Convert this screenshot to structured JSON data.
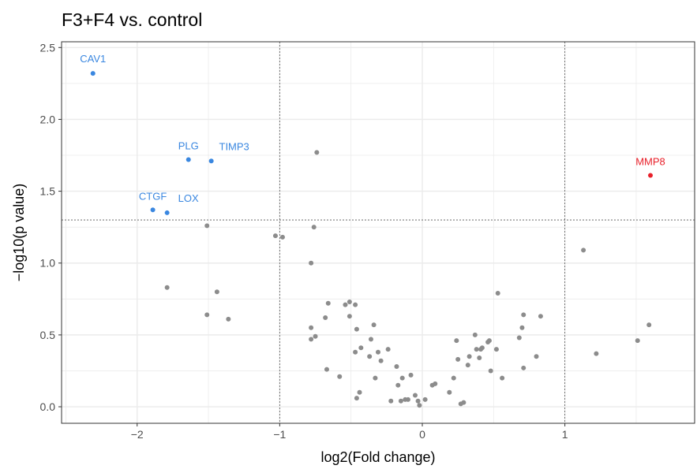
{
  "chart_data": {
    "type": "scatter",
    "title": "F3+F4 vs. control",
    "xlabel": "log2(Fold change)",
    "ylabel": "−log10(p value)",
    "xlim": [
      -2.53,
      1.91
    ],
    "ylim": [
      -0.115,
      2.54
    ],
    "x_ticks": [
      -2,
      -1,
      0,
      1
    ],
    "x_tick_labels": [
      "−2",
      "−1",
      "0",
      "1"
    ],
    "y_ticks": [
      0.0,
      0.5,
      1.0,
      1.5,
      2.0,
      2.5
    ],
    "y_tick_labels": [
      "0.0",
      "0.5",
      "1.0",
      "1.5",
      "2.0",
      "2.5"
    ],
    "grid": true,
    "vlines": [
      -1,
      1
    ],
    "hline": 1.3,
    "colors": {
      "down": "#3a87e0",
      "up": "#e8202a",
      "ns": "#8c8c8c",
      "grid": "#ebebeb",
      "panel_border": "#333333",
      "ref_line": "#555555"
    },
    "labeled_points": [
      {
        "label": "CAV1",
        "x": -2.31,
        "y": 2.32,
        "group": "down"
      },
      {
        "label": "PLG",
        "x": -1.64,
        "y": 1.72,
        "group": "down"
      },
      {
        "label": "TIMP3",
        "x": -1.48,
        "y": 1.71,
        "group": "down"
      },
      {
        "label": "CTGF",
        "x": -1.89,
        "y": 1.37,
        "group": "down"
      },
      {
        "label": "LOX",
        "x": -1.79,
        "y": 1.35,
        "group": "down"
      },
      {
        "label": "MMP8",
        "x": 1.6,
        "y": 1.61,
        "group": "up"
      }
    ],
    "points": [
      [
        -0.74,
        1.77
      ],
      [
        -1.51,
        1.26
      ],
      [
        -0.76,
        1.25
      ],
      [
        -1.03,
        1.19
      ],
      [
        -0.98,
        1.18
      ],
      [
        -0.78,
        1.0
      ],
      [
        -1.79,
        0.83
      ],
      [
        -1.44,
        0.8
      ],
      [
        -1.51,
        0.64
      ],
      [
        -1.36,
        0.61
      ],
      [
        -0.78,
        0.55
      ],
      [
        -0.78,
        0.47
      ],
      [
        -0.75,
        0.49
      ],
      [
        -0.68,
        0.62
      ],
      [
        -0.66,
        0.72
      ],
      [
        -0.54,
        0.71
      ],
      [
        -0.51,
        0.73
      ],
      [
        -0.47,
        0.71
      ],
      [
        -0.51,
        0.63
      ],
      [
        -0.46,
        0.54
      ],
      [
        -0.34,
        0.57
      ],
      [
        -0.47,
        0.38
      ],
      [
        -0.43,
        0.41
      ],
      [
        -0.36,
        0.47
      ],
      [
        -0.37,
        0.35
      ],
      [
        -0.31,
        0.38
      ],
      [
        -0.29,
        0.32
      ],
      [
        -0.24,
        0.4
      ],
      [
        -0.67,
        0.26
      ],
      [
        -0.58,
        0.21
      ],
      [
        -0.33,
        0.2
      ],
      [
        -0.18,
        0.28
      ],
      [
        -0.14,
        0.2
      ],
      [
        -0.08,
        0.22
      ],
      [
        -0.17,
        0.15
      ],
      [
        -0.46,
        0.06
      ],
      [
        -0.44,
        0.1
      ],
      [
        -0.22,
        0.04
      ],
      [
        -0.15,
        0.04
      ],
      [
        -0.12,
        0.05
      ],
      [
        -0.1,
        0.05
      ],
      [
        -0.05,
        0.08
      ],
      [
        -0.03,
        0.04
      ],
      [
        -0.02,
        0.01
      ],
      [
        0.02,
        0.05
      ],
      [
        0.07,
        0.15
      ],
      [
        0.09,
        0.16
      ],
      [
        0.19,
        0.1
      ],
      [
        0.22,
        0.2
      ],
      [
        0.24,
        0.46
      ],
      [
        0.25,
        0.33
      ],
      [
        0.27,
        0.02
      ],
      [
        0.29,
        0.03
      ],
      [
        0.32,
        0.29
      ],
      [
        0.33,
        0.35
      ],
      [
        0.37,
        0.5
      ],
      [
        0.38,
        0.4
      ],
      [
        0.4,
        0.34
      ],
      [
        0.41,
        0.4
      ],
      [
        0.42,
        0.41
      ],
      [
        0.46,
        0.45
      ],
      [
        0.47,
        0.46
      ],
      [
        0.48,
        0.25
      ],
      [
        0.52,
        0.4
      ],
      [
        0.53,
        0.79
      ],
      [
        0.56,
        0.2
      ],
      [
        0.68,
        0.48
      ],
      [
        0.7,
        0.55
      ],
      [
        0.71,
        0.64
      ],
      [
        0.71,
        0.27
      ],
      [
        0.8,
        0.35
      ],
      [
        0.83,
        0.63
      ],
      [
        1.13,
        1.09
      ],
      [
        1.22,
        0.37
      ],
      [
        1.51,
        0.46
      ],
      [
        1.59,
        0.57
      ]
    ]
  }
}
